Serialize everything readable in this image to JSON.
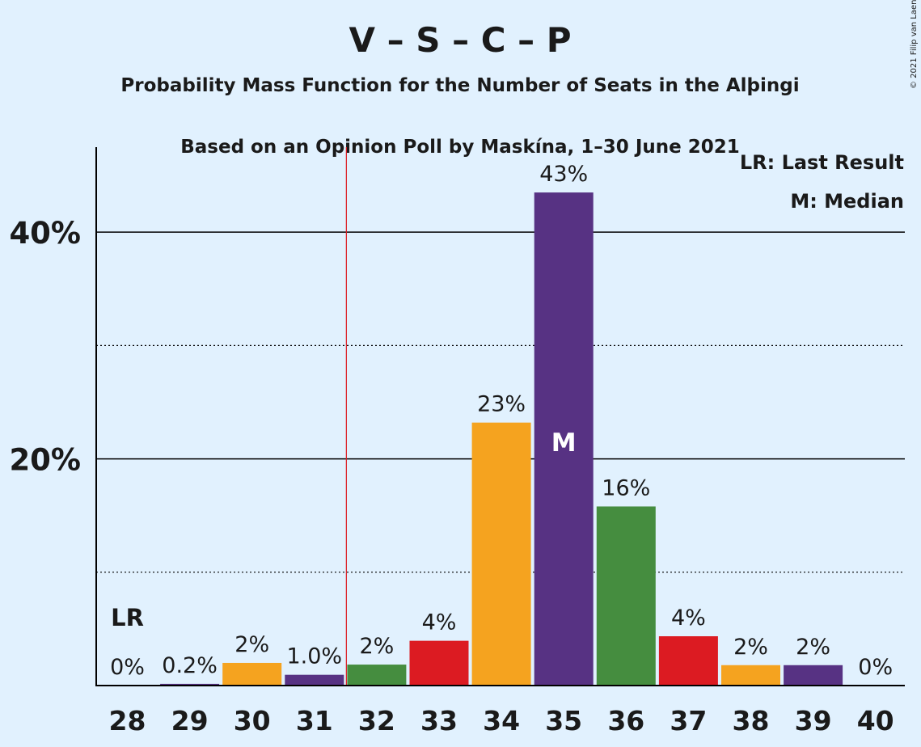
{
  "chart_data": {
    "type": "bar",
    "title": "V – S – C – P",
    "subtitle1": "Probability Mass Function for the Number of Seats in the Alþingi",
    "subtitle2": "Based on an Opinion Poll by Maskína, 1–30 June 2021",
    "copyright": "© 2021 Filip van Laenen",
    "categories": [
      "28",
      "29",
      "30",
      "31",
      "32",
      "33",
      "34",
      "35",
      "36",
      "37",
      "38",
      "39",
      "40"
    ],
    "values": [
      0,
      0.2,
      2,
      1.0,
      2,
      4,
      23,
      43,
      16,
      4,
      2,
      2,
      0
    ],
    "plotted_values": [
      0,
      0.15,
      2.0,
      0.95,
      1.85,
      3.95,
      23.2,
      43.5,
      15.8,
      4.35,
      1.8,
      1.8,
      0
    ],
    "value_labels": [
      "0%",
      "0.2%",
      "2%",
      "1.0%",
      "2%",
      "4%",
      "23%",
      "43%",
      "16%",
      "4%",
      "2%",
      "2%",
      "0%"
    ],
    "bar_colors": [
      "#f5a31f",
      "#573283",
      "#f5a31f",
      "#573283",
      "#458d3f",
      "#dc1b22",
      "#f5a31f",
      "#573283",
      "#458d3f",
      "#dc1b22",
      "#f5a31f",
      "#573283",
      "#458d3f"
    ],
    "ylim": [
      0,
      47.5
    ],
    "yticks": [
      20,
      40
    ],
    "ytick_labels": [
      "20%",
      "40%"
    ],
    "minor_gridlines": [
      10,
      30
    ],
    "last_result_seat": "31.5",
    "last_result_label": "LR",
    "median_seat": "35",
    "median_label": "M",
    "legend": [
      "LR: Last Result",
      "M: Median"
    ],
    "legend_position": "top-right"
  }
}
